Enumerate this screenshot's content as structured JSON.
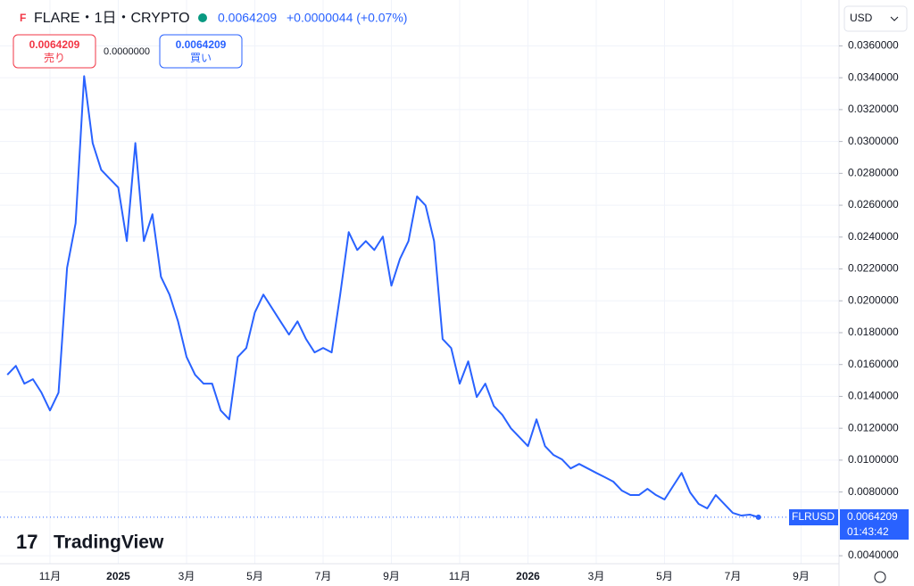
{
  "header": {
    "symbol": "FLARE・1日・CRYPTO",
    "price": "0.0064209",
    "change": "+0.0000044 (+0.07%)",
    "currency": "USD"
  },
  "trade": {
    "sell_price": "0.0064209",
    "sell_label": "売り",
    "spread": "0.0000000",
    "buy_price": "0.0064209",
    "buy_label": "買い"
  },
  "price_tag": {
    "symbol": "FLRUSD",
    "price": "0.0064209",
    "countdown": "01:43:42"
  },
  "logo": "TradingView",
  "chart_data": {
    "type": "line",
    "color": "#2962ff",
    "grid": true,
    "categories": [
      null,
      null,
      null,
      null,
      null,
      "11月",
      null,
      null,
      null,
      null,
      null,
      null,
      null,
      "2025",
      null,
      null,
      null,
      null,
      null,
      null,
      null,
      "3月",
      null,
      null,
      null,
      null,
      null,
      null,
      null,
      "5月",
      null,
      null,
      null,
      null,
      null,
      null,
      null,
      "7月",
      null,
      null,
      null,
      null,
      null,
      null,
      null,
      "9月",
      null,
      null,
      null,
      null,
      null,
      null,
      null,
      "11月",
      null,
      null,
      null,
      null,
      null,
      null,
      null,
      "2026",
      null,
      null,
      null,
      null,
      null,
      null,
      null,
      "3月",
      null,
      null,
      null,
      null,
      null,
      null,
      null,
      "5月",
      null,
      null,
      null,
      null,
      null,
      null,
      null,
      "7月",
      null,
      null,
      null,
      null,
      null,
      null,
      null,
      "9月"
    ],
    "series": [
      {
        "name": "FLRUSD",
        "color": "#2962ff",
        "values": [
          0.01536,
          0.01592,
          0.0148,
          0.01508,
          0.01424,
          0.01312,
          0.01424,
          0.02207,
          0.02487,
          0.0341,
          0.0299,
          0.02822,
          0.02766,
          0.02711,
          0.02375,
          0.0299,
          0.02375,
          0.02543,
          0.02151,
          0.02039,
          0.01871,
          0.01648,
          0.01536,
          0.0148,
          0.0148,
          0.01312,
          0.01256,
          0.01648,
          0.01704,
          0.01927,
          0.02039,
          0.01955,
          0.01871,
          0.01788,
          0.01871,
          0.0176,
          0.01676,
          0.01704,
          0.01676,
          0.02039,
          0.02431,
          0.02319,
          0.02375,
          0.02319,
          0.02403,
          0.02095,
          0.02263,
          0.02375,
          0.02655,
          0.02599,
          0.02375,
          0.0176,
          0.01704,
          0.0148,
          0.0162,
          0.01396,
          0.0148,
          0.0134,
          0.01284,
          0.012,
          0.01144,
          0.01088,
          0.01256,
          0.01088,
          0.01032,
          0.01004,
          0.00948,
          0.00976,
          0.00948,
          0.0092,
          0.00893,
          0.00865,
          0.00809,
          0.00781,
          0.00781,
          0.0082,
          0.00781,
          0.00753,
          0.00837,
          0.0092,
          0.00797,
          0.00725,
          0.00697,
          0.00781,
          0.00725,
          0.00669,
          0.00652,
          0.00658,
          0.0064209,
          null,
          null,
          null,
          null,
          null
        ]
      }
    ],
    "ylim": [
      0.0035,
      0.0386
    ],
    "yticks": [
      {
        "value": 0.036,
        "label": "0.0360000"
      },
      {
        "value": 0.034,
        "label": "0.0340000"
      },
      {
        "value": 0.032,
        "label": "0.0320000"
      },
      {
        "value": 0.03,
        "label": "0.0300000"
      },
      {
        "value": 0.028,
        "label": "0.0280000"
      },
      {
        "value": 0.026,
        "label": "0.0260000"
      },
      {
        "value": 0.024,
        "label": "0.0240000"
      },
      {
        "value": 0.022,
        "label": "0.0220000"
      },
      {
        "value": 0.02,
        "label": "0.0200000"
      },
      {
        "value": 0.018,
        "label": "0.0180000"
      },
      {
        "value": 0.016,
        "label": "0.0160000"
      },
      {
        "value": 0.014,
        "label": "0.0140000"
      },
      {
        "value": 0.012,
        "label": "0.0120000"
      },
      {
        "value": 0.01,
        "label": "0.0100000"
      },
      {
        "value": 0.008,
        "label": "0.0080000"
      },
      {
        "value": 0.004,
        "label": "0.0040000"
      }
    ]
  }
}
